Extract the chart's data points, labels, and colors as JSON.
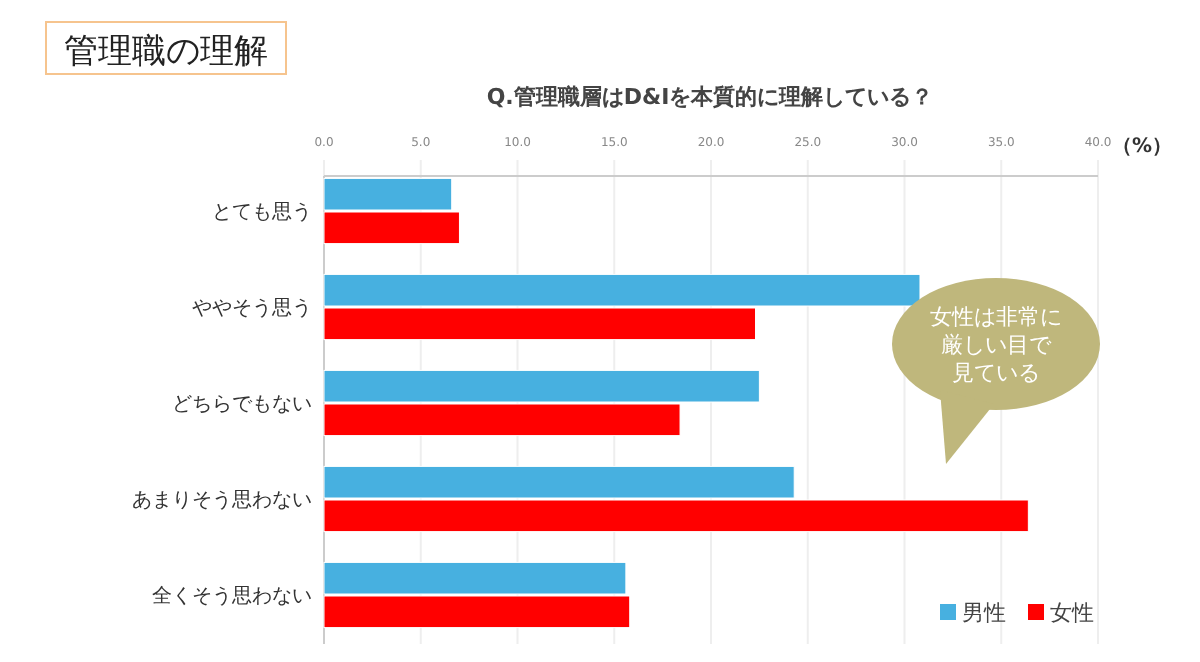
{
  "chart_data": {
    "type": "bar",
    "orientation": "horizontal",
    "title": "管理職の理解",
    "subtitle": "Q.管理職層はD&Iを本質的に理解している？",
    "categories": [
      "とても思う",
      "ややそう思う",
      "どちらでもない",
      "あまりそう思わない",
      "全くそう思わない"
    ],
    "series": [
      {
        "name": "男性",
        "color": "#47b0e0",
        "values": [
          6.6,
          30.8,
          22.5,
          24.3,
          15.6
        ]
      },
      {
        "name": "女性",
        "color": "#ff0000",
        "values": [
          7.0,
          22.3,
          18.4,
          36.4,
          15.8
        ]
      }
    ],
    "xlim": [
      0,
      40
    ],
    "xticks": [
      {
        "value": 0,
        "label": "0.0"
      },
      {
        "value": 5,
        "label": "5.0"
      },
      {
        "value": 10,
        "label": "10.0"
      },
      {
        "value": 15,
        "label": "15.0"
      },
      {
        "value": 20,
        "label": "20.0"
      },
      {
        "value": 25,
        "label": "25.0"
      },
      {
        "value": 30,
        "label": "30.0"
      },
      {
        "value": 35,
        "label": "35.0"
      },
      {
        "value": 40,
        "label": "40.0"
      }
    ],
    "grid": "x",
    "legend": "bottom right",
    "annotations": [
      "（%）",
      "女性は非常に",
      "厳しい目で",
      "見ている"
    ]
  }
}
